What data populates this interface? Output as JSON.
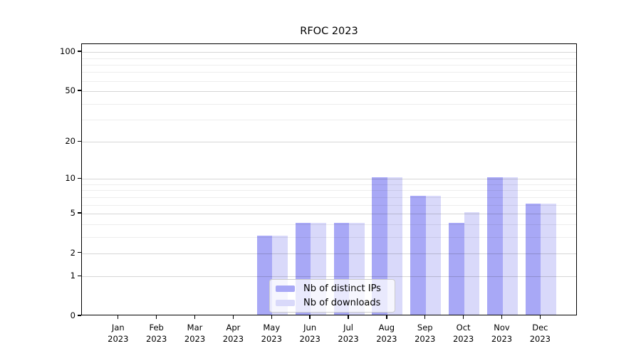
{
  "title": "RFOC 2023",
  "legend": {
    "items": [
      {
        "label": "Nb of distinct IPs",
        "color": "#a8a8f6"
      },
      {
        "label": "Nb of downloads",
        "color": "#d9d9fa"
      }
    ]
  },
  "chart_data": {
    "type": "bar",
    "title": "RFOC 2023",
    "categories": [
      "Jan 2023",
      "Feb 2023",
      "Mar 2023",
      "Apr 2023",
      "May 2023",
      "Jun 2023",
      "Jul 2023",
      "Aug 2023",
      "Sep 2023",
      "Oct 2023",
      "Nov 2023",
      "Dec 2023"
    ],
    "x_tick_line1": [
      "Jan",
      "Feb",
      "Mar",
      "Apr",
      "May",
      "Jun",
      "Jul",
      "Aug",
      "Sep",
      "Oct",
      "Nov",
      "Dec"
    ],
    "x_tick_line2": "2023",
    "series": [
      {
        "name": "Nb of distinct IPs",
        "color": "#a8a8f6",
        "values": [
          0,
          0,
          0,
          0,
          3,
          4,
          4,
          10,
          7,
          4,
          10,
          6
        ]
      },
      {
        "name": "Nb of downloads",
        "color": "#d9d9fa",
        "values": [
          0,
          0,
          0,
          0,
          3,
          4,
          4,
          10,
          7,
          5,
          10,
          6
        ]
      }
    ],
    "y_scale": "log1p",
    "y_ticks": [
      0,
      1,
      2,
      5,
      10,
      20,
      50,
      100
    ],
    "y_minor_gridlines": [
      3,
      4,
      6,
      7,
      8,
      9,
      30,
      40,
      60,
      70,
      80,
      90
    ],
    "ylim": [
      0,
      115
    ],
    "grid": "horizontal",
    "legend_position": "lower-center-inside"
  }
}
